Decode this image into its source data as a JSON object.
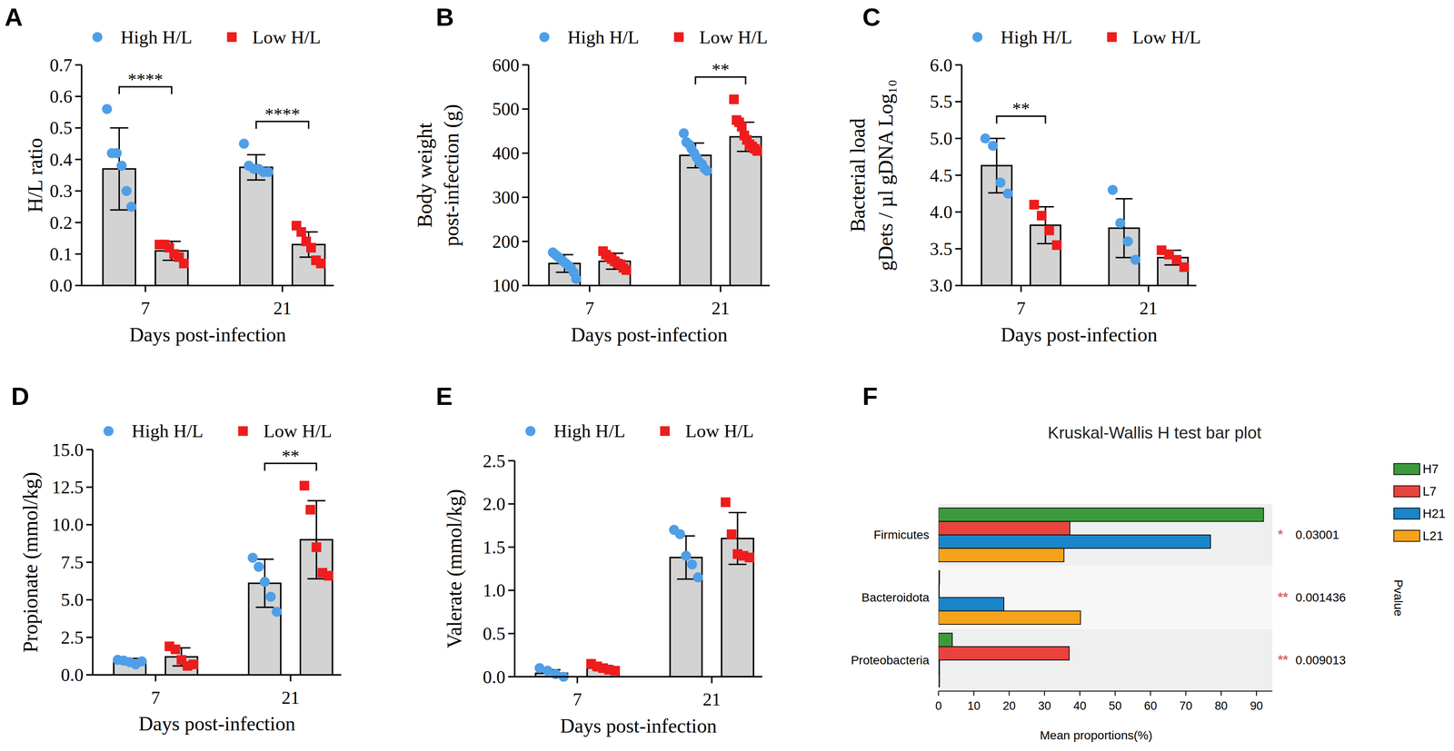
{
  "chart_data": [
    {
      "panel": "A",
      "type": "bar",
      "legend": "top",
      "xlabel": "Days post-infection",
      "ylabel": "H/L ratio",
      "categories": [
        "7",
        "21"
      ],
      "ylim": [
        0,
        0.7
      ],
      "yticks": [
        {
          "value": 0,
          "label": "0.0"
        },
        0.1,
        0.2,
        0.3,
        0.4,
        0.5,
        0.6,
        0.7
      ],
      "series": [
        {
          "name": "High H/L",
          "color": "#4f9ee8",
          "marker": "circle",
          "values": [
            0.37,
            0.375
          ],
          "errors": [
            0.13,
            0.04
          ],
          "points": [
            [
              0.56,
              0.42,
              0.42,
              0.38,
              0.3,
              0.25
            ],
            [
              0.45,
              0.38,
              0.37,
              0.37,
              0.36,
              0.36
            ]
          ]
        },
        {
          "name": "Low H/L",
          "color": "#ee1c1c",
          "marker": "square",
          "values": [
            0.11,
            0.13
          ],
          "errors": [
            0.03,
            0.04
          ],
          "points": [
            [
              0.13,
              0.13,
              0.12,
              0.1,
              0.09,
              0.07
            ],
            [
              0.19,
              0.17,
              0.14,
              0.12,
              0.08,
              0.07
            ]
          ]
        }
      ],
      "significance": [
        {
          "category": "7",
          "label": "****"
        },
        {
          "category": "21",
          "label": "****"
        }
      ]
    },
    {
      "panel": "B",
      "type": "bar",
      "legend": "top",
      "xlabel": "Days post-infection",
      "ylabel": [
        "Body weight",
        "post-infection (g)"
      ],
      "categories": [
        "7",
        "21"
      ],
      "ylim": [
        100,
        600
      ],
      "yticks": [
        100,
        200,
        300,
        400,
        500,
        600
      ],
      "series": [
        {
          "name": "High H/L",
          "color": "#4f9ee8",
          "marker": "circle",
          "values": [
            150,
            395
          ],
          "errors": [
            20,
            28
          ],
          "points": [
            [
              175,
              170,
              165,
              160,
              155,
              150,
              145,
              140,
              130,
              115
            ],
            [
              445,
              425,
              420,
              410,
              400,
              390,
              380,
              375,
              365,
              360
            ]
          ]
        },
        {
          "name": "Low H/L",
          "color": "#ee1c1c",
          "marker": "square",
          "values": [
            155,
            437
          ],
          "errors": [
            18,
            33
          ],
          "points": [
            [
              178,
              170,
              165,
              160,
              155,
              150,
              148,
              140,
              135
            ],
            [
              522,
              475,
              470,
              460,
              440,
              430,
              420,
              415,
              410,
              405
            ]
          ]
        }
      ],
      "significance": [
        {
          "category": "21",
          "label": "**"
        }
      ]
    },
    {
      "panel": "C",
      "type": "bar",
      "legend": "top",
      "xlabel": "Days post-infection",
      "ylabel": [
        "Bacterial load",
        "gDets / µl gDNA Log₁₀"
      ],
      "categories": [
        "7",
        "21"
      ],
      "ylim": [
        3,
        6
      ],
      "yticks": [
        {
          "value": 3,
          "label": "3.0"
        },
        3.5,
        {
          "value": 4,
          "label": "4.0"
        },
        4.5,
        {
          "value": 5,
          "label": "5.0"
        },
        5.5,
        {
          "value": 6,
          "label": "6.0"
        }
      ],
      "series": [
        {
          "name": "High H/L",
          "color": "#4f9ee8",
          "marker": "circle",
          "values": [
            4.63,
            3.78
          ],
          "errors": [
            0.37,
            0.4
          ],
          "points": [
            [
              5.0,
              4.9,
              4.4,
              4.25
            ],
            [
              4.3,
              3.85,
              3.6,
              3.35
            ]
          ]
        },
        {
          "name": "Low H/L",
          "color": "#ee1c1c",
          "marker": "square",
          "values": [
            3.82,
            3.38
          ],
          "errors": [
            0.25,
            0.1
          ],
          "points": [
            [
              4.1,
              3.95,
              3.75,
              3.55
            ],
            [
              3.48,
              3.42,
              3.35,
              3.25
            ]
          ]
        }
      ],
      "significance": [
        {
          "category": "7",
          "label": "**"
        }
      ]
    },
    {
      "panel": "D",
      "type": "bar",
      "legend": "top",
      "xlabel": "Days post-infection",
      "ylabel": "Propionate (mmol/kg)",
      "categories": [
        "7",
        "21"
      ],
      "ylim": [
        0,
        15
      ],
      "yticks": [
        {
          "value": 0,
          "label": "0.0"
        },
        2.5,
        {
          "value": 5,
          "label": "5.0"
        },
        7.5,
        {
          "value": 10,
          "label": "10.0"
        },
        12.5,
        {
          "value": 15,
          "label": "15.0"
        }
      ],
      "series": [
        {
          "name": "High H/L",
          "color": "#4f9ee8",
          "marker": "circle",
          "values": [
            0.9,
            6.1
          ],
          "errors": [
            0.2,
            1.6
          ],
          "points": [
            [
              1.0,
              0.95,
              0.85,
              0.7,
              0.9
            ],
            [
              7.8,
              7.2,
              6.2,
              5.2,
              4.2
            ]
          ]
        },
        {
          "name": "Low H/L",
          "color": "#ee1c1c",
          "marker": "square",
          "values": [
            1.2,
            9.0
          ],
          "errors": [
            0.6,
            2.6
          ],
          "points": [
            [
              1.9,
              1.7,
              1.0,
              0.6,
              0.7
            ],
            [
              12.6,
              11.0,
              8.5,
              6.8,
              6.6
            ]
          ]
        }
      ],
      "significance": [
        {
          "category": "21",
          "label": "**"
        }
      ]
    },
    {
      "panel": "E",
      "type": "bar",
      "legend": "top",
      "xlabel": "Days post-infection",
      "ylabel": "Valerate (mmol/kg)",
      "categories": [
        "7",
        "21"
      ],
      "ylim": [
        0,
        2.5
      ],
      "yticks": [
        {
          "value": 0,
          "label": "0.0"
        },
        0.5,
        {
          "value": 1,
          "label": "1.0"
        },
        1.5,
        {
          "value": 2,
          "label": "2.0"
        },
        2.5
      ],
      "series": [
        {
          "name": "High H/L",
          "color": "#4f9ee8",
          "marker": "circle",
          "values": [
            0.04,
            1.38
          ],
          "errors": [
            0.04,
            0.25
          ],
          "points": [
            [
              0.1,
              0.07,
              0.03,
              0.0
            ],
            [
              1.7,
              1.65,
              1.4,
              1.3,
              1.15
            ]
          ]
        },
        {
          "name": "Low H/L",
          "color": "#ee1c1c",
          "marker": "square",
          "values": [
            0.1,
            1.6
          ],
          "errors": [
            0.03,
            0.3
          ],
          "points": [
            [
              0.15,
              0.12,
              0.1,
              0.08,
              0.07
            ],
            [
              2.02,
              1.65,
              1.42,
              1.4,
              1.38
            ]
          ]
        }
      ],
      "significance": []
    },
    {
      "panel": "F",
      "type": "bar",
      "orientation": "horizontal",
      "legend": "right",
      "title": "Kruskal-Wallis H test bar plot",
      "xlabel": "Mean proportions(%)",
      "categories": [
        "Firmicutes",
        "Bacteroidota",
        "Proteobacteria"
      ],
      "xlim": [
        0,
        94.5
      ],
      "xticks": [
        0,
        10,
        20,
        30,
        40,
        50,
        60,
        70,
        80,
        90
      ],
      "series": [
        {
          "name": "H7",
          "color": "#3c9a3c",
          "values": [
            92,
            0.3,
            3.9
          ]
        },
        {
          "name": "L7",
          "color": "#e8433c",
          "values": [
            37.2,
            0.2,
            37
          ]
        },
        {
          "name": "H21",
          "color": "#1a85c8",
          "values": [
            77,
            18.5,
            0.3
          ]
        },
        {
          "name": "L21",
          "color": "#f5a31a",
          "values": [
            35.5,
            40.2,
            0.3
          ]
        }
      ],
      "significance": [
        "*",
        "**",
        "**"
      ],
      "p_values": [
        0.03001,
        0.001436,
        0.009013
      ],
      "p_value_label": "Pvalue"
    }
  ]
}
